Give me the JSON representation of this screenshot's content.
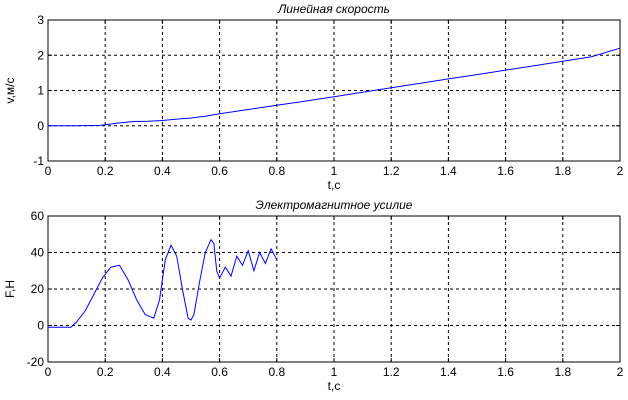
{
  "chart_data": [
    {
      "type": "line",
      "title": "Линейная скорость",
      "xlabel": "t,c",
      "ylabel": "v,м/с",
      "xlim": [
        0,
        2
      ],
      "ylim": [
        -1,
        3
      ],
      "xticks": [
        "0",
        "0.2",
        "0.4",
        "0.6",
        "0.8",
        "1",
        "1.2",
        "1.4",
        "1.6",
        "1.8",
        "2"
      ],
      "yticks": [
        "-1",
        "0",
        "1",
        "2",
        "3"
      ],
      "grid": true,
      "series": [
        {
          "color": "#0000ff",
          "x": [
            0,
            0.1,
            0.18,
            0.2,
            0.25,
            0.3,
            0.35,
            0.4,
            0.45,
            0.5,
            0.55,
            0.6,
            0.7,
            0.8,
            0.9,
            1.0,
            1.1,
            1.2,
            1.3,
            1.4,
            1.5,
            1.6,
            1.7,
            1.8,
            1.9,
            2.0
          ],
          "y": [
            0,
            0,
            0.01,
            0.03,
            0.08,
            0.12,
            0.13,
            0.15,
            0.19,
            0.22,
            0.27,
            0.34,
            0.46,
            0.58,
            0.7,
            0.82,
            0.95,
            1.08,
            1.2,
            1.33,
            1.45,
            1.58,
            1.7,
            1.83,
            1.96,
            2.2
          ]
        }
      ]
    },
    {
      "type": "line",
      "title": "Электромагнитное усилие",
      "xlabel": "t,c",
      "ylabel": "F,H",
      "xlim": [
        0,
        2
      ],
      "ylim": [
        -20,
        60
      ],
      "xticks": [
        "0",
        "0.2",
        "0.4",
        "0.6",
        "0.8",
        "1",
        "1.2",
        "1.4",
        "1.6",
        "1.8",
        "2"
      ],
      "yticks": [
        "-20",
        "0",
        "20",
        "40",
        "60"
      ],
      "grid": true,
      "series": [
        {
          "color": "#0000ff",
          "x": [
            0,
            0.04,
            0.08,
            0.1,
            0.13,
            0.16,
            0.19,
            0.22,
            0.25,
            0.28,
            0.31,
            0.34,
            0.37,
            0.39,
            0.41,
            0.43,
            0.45,
            0.47,
            0.49,
            0.5,
            0.51,
            0.53,
            0.55,
            0.57,
            0.58,
            0.59,
            0.6,
            0.62,
            0.64,
            0.66,
            0.68,
            0.7,
            0.72,
            0.74,
            0.76,
            0.78,
            0.8
          ],
          "y": [
            -1,
            -1,
            -1,
            2,
            8,
            17,
            26,
            32,
            33,
            25,
            14,
            6,
            4,
            14,
            36,
            44,
            38,
            20,
            4,
            3,
            6,
            24,
            40,
            47,
            45,
            30,
            26,
            32,
            27,
            38,
            33,
            41,
            30,
            40,
            34,
            42,
            36
          ]
        }
      ]
    }
  ]
}
